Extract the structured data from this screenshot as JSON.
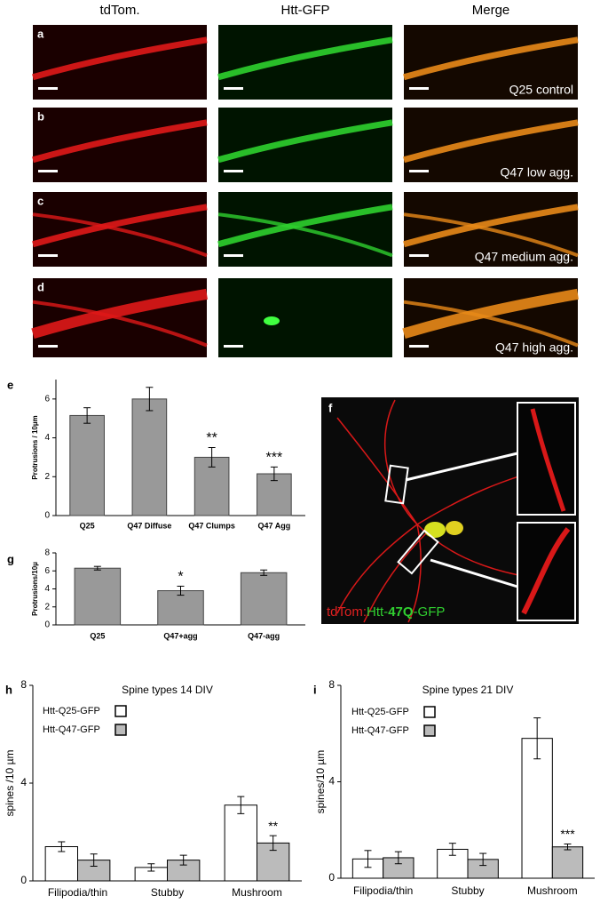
{
  "figure": {
    "columns": [
      "tdTom.",
      "Htt-GFP",
      "Merge"
    ],
    "rows": [
      {
        "letter": "a",
        "label": "Q25 control"
      },
      {
        "letter": "b",
        "label": "Q47 low agg."
      },
      {
        "letter": "c",
        "label": "Q47 medium agg."
      },
      {
        "letter": "d",
        "label": "Q47 high agg."
      }
    ],
    "panel_f": {
      "letter": "f",
      "caption": [
        "tdTom:",
        "Htt-",
        "47Q",
        "-GFP"
      ]
    }
  },
  "chart_data": [
    {
      "type": "bar",
      "letter": "e",
      "ylabel": "Protrusions / 10µm",
      "categories": [
        "Q25",
        "Q47 Diffuse",
        "Q47 Clumps",
        "Q47 Agg"
      ],
      "values": [
        5.15,
        6.0,
        3.0,
        2.15
      ],
      "errors": [
        0.4,
        0.6,
        0.5,
        0.35
      ],
      "significance": [
        null,
        null,
        "**",
        "***"
      ],
      "color": "#999999",
      "ylim": [
        0,
        7
      ],
      "yticks": [
        0,
        2,
        4,
        6
      ]
    },
    {
      "type": "bar",
      "letter": "g",
      "ylabel": "Protrusions/10µ",
      "categories": [
        "Q25",
        "Q47+agg",
        "Q47-agg"
      ],
      "values": [
        6.3,
        3.8,
        5.8
      ],
      "errors": [
        0.2,
        0.5,
        0.3
      ],
      "significance": [
        null,
        "*",
        null
      ],
      "color": "#999999",
      "ylim": [
        0,
        8
      ],
      "yticks": [
        0,
        2,
        4,
        6,
        8
      ]
    },
    {
      "type": "grouped-bar",
      "letter": "h",
      "title": "Spine types 14 DIV",
      "ylabel": "spines /10 µm",
      "categories": [
        "Filipodia/thin",
        "Stubby",
        "Mushroom"
      ],
      "series": [
        {
          "name": "Htt-Q25-GFP",
          "color": "#ffffff",
          "values": [
            1.4,
            0.55,
            3.1
          ],
          "errors": [
            0.2,
            0.15,
            0.35
          ],
          "significance": [
            null,
            null,
            null
          ]
        },
        {
          "name": "Htt-Q47-GFP",
          "color": "#bbbbbb",
          "values": [
            0.85,
            0.85,
            1.55
          ],
          "errors": [
            0.25,
            0.2,
            0.3
          ],
          "significance": [
            null,
            null,
            "**"
          ]
        }
      ],
      "ylim": [
        0,
        8
      ],
      "yticks": [
        0,
        4,
        8
      ]
    },
    {
      "type": "grouped-bar",
      "letter": "i",
      "title": "Spine types 21 DIV",
      "ylabel": "spines/10 µm",
      "categories": [
        "Filipodia/thin",
        "Stubby",
        "Mushroom"
      ],
      "series": [
        {
          "name": "Htt-Q25-GFP",
          "color": "#ffffff",
          "values": [
            0.8,
            1.2,
            5.8
          ],
          "errors": [
            0.35,
            0.25,
            0.85
          ],
          "significance": [
            null,
            null,
            null
          ]
        },
        {
          "name": "Htt-Q47-GFP",
          "color": "#bbbbbb",
          "values": [
            0.85,
            0.78,
            1.3
          ],
          "errors": [
            0.25,
            0.25,
            0.12
          ],
          "significance": [
            null,
            null,
            "***"
          ]
        }
      ],
      "ylim": [
        0,
        8
      ],
      "yticks": [
        0,
        4,
        8
      ]
    }
  ]
}
